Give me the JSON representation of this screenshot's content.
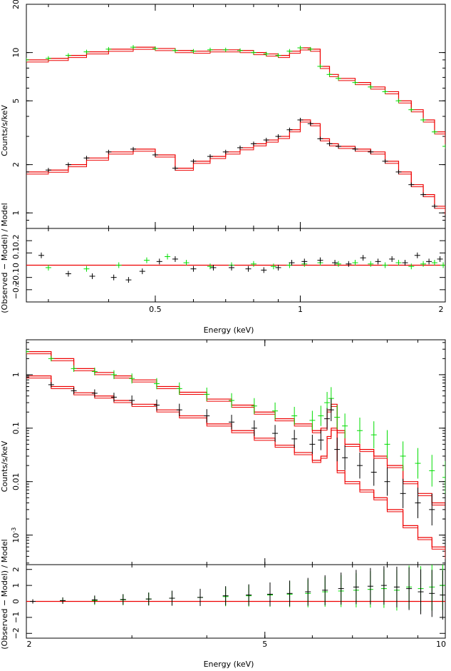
{
  "chart_data": [
    {
      "type": "scatter",
      "panel": "top",
      "xlabel": "Energy (keV)",
      "ylabel_main": "Counts/s/keV",
      "ylabel_resid": "(Observed − Model) / Model",
      "x_scale": "log",
      "xlim": [
        0.27,
        2.0
      ],
      "xticks": [
        {
          "v": 0.5,
          "label": "0.5"
        },
        {
          "v": 1,
          "label": "1"
        },
        {
          "v": 2,
          "label": "2"
        }
      ],
      "y_scale": "log",
      "ylim": [
        0.8,
        20
      ],
      "yticks": [
        {
          "v": 1,
          "label": "1"
        },
        {
          "v": 2,
          "label": "2"
        },
        {
          "v": 5,
          "label": "5"
        },
        {
          "v": 10,
          "label": "10"
        },
        {
          "v": 20,
          "label": "20"
        }
      ],
      "resid_ylim": [
        -0.3,
        0.3
      ],
      "resid_yticks": [
        {
          "v": -0.2,
          "label": "−0.2"
        },
        {
          "v": -0.1,
          "label": "−0.1"
        },
        {
          "v": 0,
          "label": "0"
        },
        {
          "v": 0.1,
          "label": "0.1"
        },
        {
          "v": 0.2,
          "label": "0.2"
        }
      ],
      "series": [
        {
          "color": "#00dd00",
          "model_color": "#ee0000",
          "x": [
            0.27,
            0.3,
            0.33,
            0.36,
            0.4,
            0.45,
            0.5,
            0.55,
            0.6,
            0.65,
            0.7,
            0.75,
            0.8,
            0.85,
            0.9,
            0.95,
            1.0,
            1.05,
            1.1,
            1.15,
            1.2,
            1.3,
            1.4,
            1.5,
            1.6,
            1.7,
            1.8,
            1.9,
            2.0
          ],
          "y": [
            9.0,
            9.2,
            9.6,
            10.1,
            10.5,
            10.8,
            10.6,
            10.3,
            10.2,
            10.4,
            10.4,
            10.3,
            10.0,
            9.8,
            9.6,
            10.2,
            10.7,
            10.5,
            8.2,
            7.3,
            6.9,
            6.5,
            6.1,
            5.7,
            5.0,
            4.4,
            3.8,
            3.2,
            2.6
          ]
        },
        {
          "color": "#000000",
          "model_color": "#ee0000",
          "x": [
            0.27,
            0.3,
            0.33,
            0.36,
            0.4,
            0.45,
            0.5,
            0.55,
            0.6,
            0.65,
            0.7,
            0.75,
            0.8,
            0.85,
            0.9,
            0.95,
            1.0,
            1.05,
            1.1,
            1.15,
            1.2,
            1.3,
            1.4,
            1.5,
            1.6,
            1.7,
            1.8,
            1.9,
            2.0
          ],
          "y": [
            1.8,
            1.85,
            2.0,
            2.2,
            2.4,
            2.5,
            2.3,
            1.9,
            2.1,
            2.25,
            2.4,
            2.55,
            2.7,
            2.85,
            3.0,
            3.3,
            3.8,
            3.6,
            2.9,
            2.7,
            2.6,
            2.5,
            2.4,
            2.1,
            1.8,
            1.5,
            1.3,
            1.1,
            0.95
          ]
        }
      ],
      "residuals": [
        {
          "color": "#00dd00",
          "x": [
            0.3,
            0.36,
            0.42,
            0.48,
            0.53,
            0.58,
            0.65,
            0.72,
            0.8,
            0.88,
            0.95,
            1.02,
            1.1,
            1.2,
            1.3,
            1.4,
            1.5,
            1.6,
            1.7,
            1.8,
            1.9,
            1.98
          ],
          "y": [
            -0.02,
            -0.03,
            0.0,
            0.04,
            0.07,
            0.02,
            -0.01,
            0.0,
            0.01,
            -0.01,
            0.0,
            0.01,
            0.02,
            0.01,
            0.02,
            0.01,
            0.0,
            0.02,
            -0.01,
            0.01,
            0.02,
            0.0
          ]
        },
        {
          "color": "#000000",
          "x": [
            0.29,
            0.33,
            0.37,
            0.41,
            0.44,
            0.47,
            0.51,
            0.55,
            0.6,
            0.66,
            0.72,
            0.78,
            0.84,
            0.9,
            0.96,
            1.02,
            1.1,
            1.18,
            1.26,
            1.35,
            1.45,
            1.55,
            1.65,
            1.75,
            1.85,
            1.95
          ],
          "y": [
            0.08,
            -0.07,
            -0.09,
            -0.1,
            -0.12,
            -0.05,
            0.03,
            0.05,
            -0.03,
            -0.02,
            -0.02,
            -0.03,
            -0.04,
            -0.02,
            0.02,
            0.03,
            0.04,
            0.02,
            0.01,
            0.06,
            0.03,
            0.05,
            0.02,
            0.08,
            0.03,
            0.05
          ]
        }
      ]
    },
    {
      "type": "scatter",
      "panel": "bottom",
      "xlabel": "Energy (keV)",
      "ylabel_main": "Counts/s/keV",
      "ylabel_resid": "(Observed − Model) / Model",
      "x_scale": "log",
      "xlim": [
        2.0,
        10.0
      ],
      "xticks": [
        {
          "v": 2,
          "label": "2"
        },
        {
          "v": 5,
          "label": "5"
        },
        {
          "v": 10,
          "label": "10"
        }
      ],
      "y_scale": "log",
      "ylim": [
        0.00028,
        4.5
      ],
      "yticks": [
        {
          "v": 0.001,
          "label": "10^-3"
        },
        {
          "v": 0.01,
          "label": "0.01"
        },
        {
          "v": 0.1,
          "label": "0.1"
        },
        {
          "v": 1,
          "label": "1"
        }
      ],
      "resid_ylim": [
        -2.3,
        2.3
      ],
      "resid_yticks": [
        {
          "v": -2,
          "label": "−2"
        },
        {
          "v": -1,
          "label": "−1"
        },
        {
          "v": 0,
          "label": "0"
        },
        {
          "v": 1,
          "label": "1"
        },
        {
          "v": 2,
          "label": "2"
        }
      ],
      "series": [
        {
          "color": "#00dd00",
          "model_color": "#ee0000",
          "x": [
            2.0,
            2.2,
            2.4,
            2.6,
            2.8,
            3.0,
            3.3,
            3.6,
            4.0,
            4.4,
            4.8,
            5.2,
            5.6,
            6.0,
            6.2,
            6.35,
            6.45,
            6.6,
            6.8,
            7.2,
            7.6,
            8.0,
            8.5,
            9.0,
            9.5,
            10.0
          ],
          "y": [
            2.7,
            2.0,
            1.3,
            1.15,
            1.0,
            0.85,
            0.68,
            0.55,
            0.43,
            0.33,
            0.26,
            0.21,
            0.17,
            0.14,
            0.17,
            0.3,
            0.36,
            0.16,
            0.11,
            0.09,
            0.075,
            0.05,
            0.03,
            0.022,
            0.016,
            0.012
          ]
        },
        {
          "color": "#000000",
          "model_color": "#ee0000",
          "x": [
            2.0,
            2.2,
            2.4,
            2.6,
            2.8,
            3.0,
            3.3,
            3.6,
            4.0,
            4.4,
            4.8,
            5.2,
            5.6,
            6.0,
            6.2,
            6.35,
            6.45,
            6.6,
            6.8,
            7.2,
            7.6,
            8.0,
            8.5,
            9.0,
            9.5,
            10.0
          ],
          "y": [
            0.95,
            0.65,
            0.5,
            0.45,
            0.38,
            0.33,
            0.27,
            0.22,
            0.17,
            0.13,
            0.1,
            0.08,
            0.063,
            0.05,
            0.06,
            0.15,
            0.22,
            0.04,
            0.028,
            0.02,
            0.015,
            0.01,
            0.006,
            0.004,
            0.003,
            0.002
          ]
        }
      ],
      "models": [
        {
          "color": "#ee0000",
          "x": [
            2.0,
            2.2,
            2.4,
            2.6,
            2.8,
            3.0,
            3.3,
            3.6,
            4.0,
            4.4,
            4.8,
            5.2,
            5.6,
            6.0,
            6.2,
            6.35,
            6.45,
            6.6,
            6.8,
            7.2,
            7.6,
            8.0,
            8.5,
            9.0,
            9.5,
            10.0
          ],
          "y": [
            2.7,
            2.0,
            1.3,
            1.1,
            0.95,
            0.8,
            0.6,
            0.47,
            0.35,
            0.27,
            0.2,
            0.15,
            0.12,
            0.09,
            0.1,
            0.22,
            0.28,
            0.09,
            0.05,
            0.04,
            0.03,
            0.02,
            0.01,
            0.006,
            0.004,
            0.003
          ]
        },
        {
          "color": "#ee0000",
          "x": [
            2.0,
            2.2,
            2.4,
            2.6,
            2.8,
            3.0,
            3.3,
            3.6,
            4.0,
            4.4,
            4.8,
            5.2,
            5.6,
            6.0,
            6.2,
            6.35,
            6.45,
            6.6,
            6.8,
            7.2,
            7.6,
            8.0,
            8.5,
            9.0,
            9.5,
            10.0
          ],
          "y": [
            0.95,
            0.6,
            0.46,
            0.4,
            0.33,
            0.28,
            0.22,
            0.17,
            0.12,
            0.09,
            0.065,
            0.048,
            0.035,
            0.025,
            0.03,
            0.07,
            0.1,
            0.016,
            0.01,
            0.007,
            0.005,
            0.003,
            0.0015,
            0.0009,
            0.0006,
            0.0004
          ]
        }
      ],
      "residuals": [
        {
          "color": "#00dd00",
          "x": [
            2.05,
            2.3,
            2.6,
            2.9,
            3.2,
            3.5,
            3.9,
            4.3,
            4.7,
            5.1,
            5.5,
            5.9,
            6.3,
            6.7,
            7.1,
            7.5,
            7.9,
            8.3,
            8.7,
            9.1,
            9.5,
            9.9
          ],
          "y": [
            0.0,
            0.05,
            0.05,
            0.1,
            0.15,
            0.2,
            0.25,
            0.3,
            0.35,
            0.4,
            0.45,
            0.5,
            0.6,
            0.65,
            0.7,
            0.75,
            0.8,
            0.7,
            0.9,
            0.8,
            0.9,
            1.0
          ]
        },
        {
          "color": "#000000",
          "x": [
            2.05,
            2.3,
            2.6,
            2.9,
            3.2,
            3.5,
            3.9,
            4.3,
            4.7,
            5.1,
            5.5,
            5.9,
            6.3,
            6.7,
            7.1,
            7.5,
            7.9,
            8.3,
            8.7,
            9.1,
            9.5,
            9.9
          ],
          "y": [
            0.0,
            0.05,
            0.1,
            0.12,
            0.15,
            0.2,
            0.25,
            0.35,
            0.4,
            0.45,
            0.5,
            0.6,
            0.7,
            0.8,
            0.9,
            0.95,
            1.0,
            0.9,
            0.8,
            0.6,
            0.5,
            0.4
          ]
        }
      ]
    }
  ]
}
